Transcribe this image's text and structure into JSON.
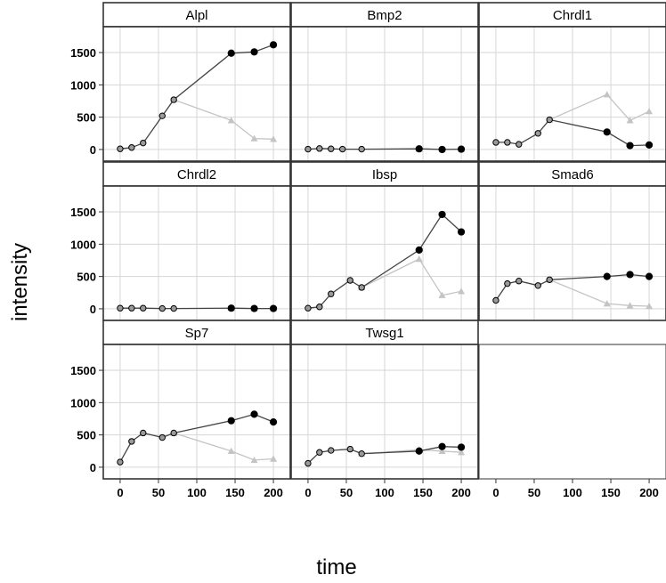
{
  "chart_data": {
    "type": "line",
    "xlabel": "time",
    "ylabel": "intensity",
    "xlim": [
      -22,
      222
    ],
    "ylim": [
      -180,
      1900
    ],
    "x_ticks": [
      0,
      50,
      100,
      150,
      200
    ],
    "y_ticks": [
      0,
      500,
      1000,
      1500
    ],
    "grid": true,
    "colors": {
      "black_series": "#000000",
      "gray_series": "#c4c4c4",
      "panel_border": "#333333",
      "grid": "#d6d6d6"
    },
    "panels": [
      {
        "title": "Alpl",
        "black": [
          [
            0,
            10
          ],
          [
            15,
            30
          ],
          [
            30,
            100
          ],
          [
            55,
            520
          ],
          [
            70,
            770
          ],
          [
            145,
            1490
          ],
          [
            175,
            1510
          ],
          [
            200,
            1620
          ]
        ],
        "gray": [
          [
            70,
            770
          ],
          [
            145,
            450
          ],
          [
            175,
            170
          ],
          [
            200,
            160
          ]
        ]
      },
      {
        "title": "Bmp2",
        "black": [
          [
            0,
            5
          ],
          [
            15,
            15
          ],
          [
            30,
            10
          ],
          [
            45,
            5
          ],
          [
            70,
            5
          ],
          [
            145,
            10
          ],
          [
            175,
            0
          ],
          [
            200,
            5
          ]
        ],
        "gray": [
          [
            145,
            10
          ],
          [
            175,
            0
          ],
          [
            200,
            5
          ]
        ]
      },
      {
        "title": "Chrdl1",
        "black": [
          [
            0,
            110
          ],
          [
            15,
            110
          ],
          [
            30,
            80
          ],
          [
            55,
            250
          ],
          [
            70,
            460
          ],
          [
            145,
            270
          ],
          [
            175,
            60
          ],
          [
            200,
            70
          ]
        ],
        "gray": [
          [
            70,
            460
          ],
          [
            145,
            850
          ],
          [
            175,
            450
          ],
          [
            200,
            590
          ]
        ]
      },
      {
        "title": "Chrdl2",
        "black": [
          [
            0,
            10
          ],
          [
            15,
            10
          ],
          [
            30,
            10
          ],
          [
            55,
            5
          ],
          [
            70,
            5
          ],
          [
            145,
            10
          ],
          [
            175,
            5
          ],
          [
            200,
            5
          ]
        ],
        "gray": [
          [
            145,
            10
          ],
          [
            175,
            5
          ],
          [
            200,
            5
          ]
        ]
      },
      {
        "title": "Ibsp",
        "black": [
          [
            0,
            10
          ],
          [
            15,
            30
          ],
          [
            30,
            230
          ],
          [
            55,
            440
          ],
          [
            70,
            330
          ],
          [
            145,
            910
          ],
          [
            175,
            1460
          ],
          [
            200,
            1190
          ]
        ],
        "gray": [
          [
            70,
            330
          ],
          [
            145,
            770
          ],
          [
            175,
            210
          ],
          [
            200,
            270
          ]
        ]
      },
      {
        "title": "Smad6",
        "black": [
          [
            0,
            130
          ],
          [
            15,
            390
          ],
          [
            30,
            430
          ],
          [
            55,
            360
          ],
          [
            70,
            450
          ],
          [
            145,
            500
          ],
          [
            175,
            530
          ],
          [
            200,
            500
          ]
        ],
        "gray": [
          [
            70,
            450
          ],
          [
            145,
            80
          ],
          [
            175,
            50
          ],
          [
            200,
            40
          ]
        ]
      },
      {
        "title": "Sp7",
        "black": [
          [
            0,
            80
          ],
          [
            15,
            400
          ],
          [
            30,
            530
          ],
          [
            55,
            460
          ],
          [
            70,
            530
          ],
          [
            145,
            720
          ],
          [
            175,
            820
          ],
          [
            200,
            700
          ]
        ],
        "gray": [
          [
            70,
            530
          ],
          [
            145,
            250
          ],
          [
            175,
            110
          ],
          [
            200,
            130
          ]
        ]
      },
      {
        "title": "Twsg1",
        "black": [
          [
            0,
            60
          ],
          [
            15,
            230
          ],
          [
            30,
            260
          ],
          [
            55,
            280
          ],
          [
            70,
            210
          ],
          [
            145,
            250
          ],
          [
            175,
            320
          ],
          [
            200,
            310
          ]
        ],
        "gray": [
          [
            70,
            210
          ],
          [
            145,
            270
          ],
          [
            175,
            250
          ],
          [
            200,
            230
          ]
        ]
      }
    ]
  }
}
